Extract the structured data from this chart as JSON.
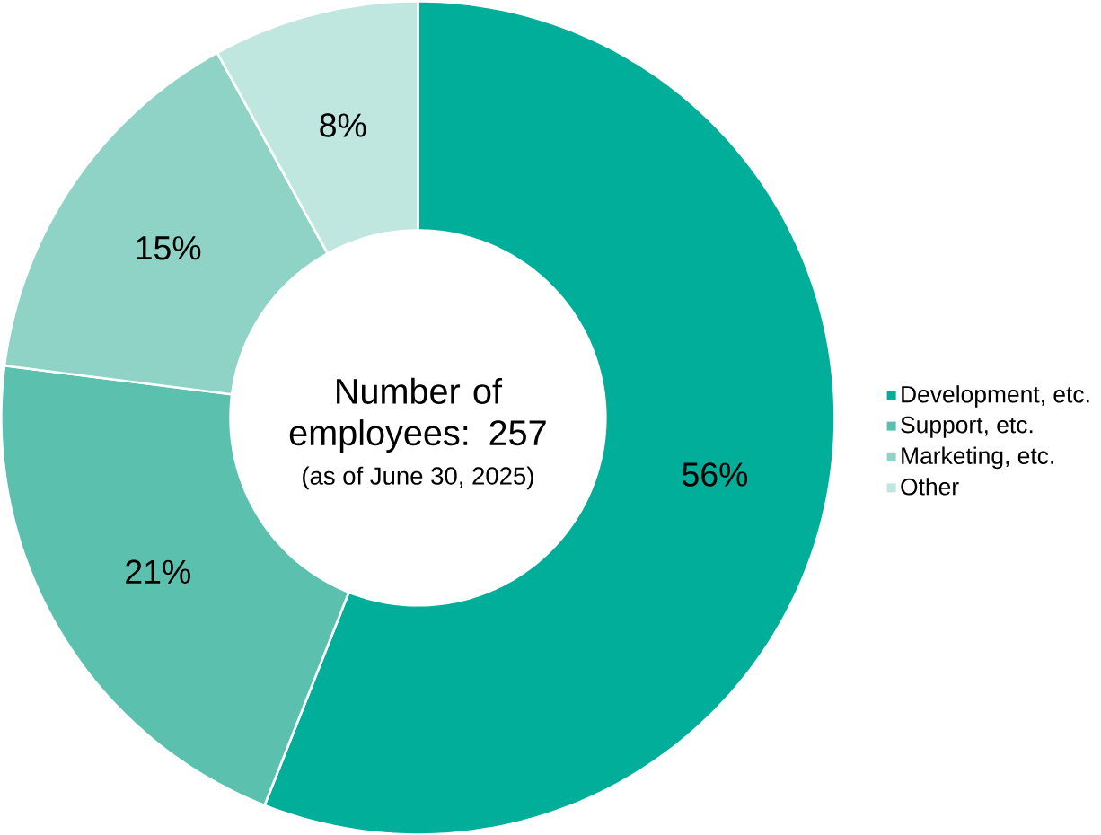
{
  "chart_data": {
    "type": "donut",
    "categories": [
      "Development, etc.",
      "Support, etc.",
      "Marketing, etc.",
      "Other"
    ],
    "values": [
      56,
      21,
      15,
      8
    ],
    "colors": [
      "#00ae9a",
      "#5cc0af",
      "#8fd3c7",
      "#bfe6df"
    ],
    "value_labels": [
      "56%",
      "21%",
      "15%",
      "8%"
    ],
    "annotations": [
      "Number of employees: 257",
      "(as of June 30, 2025)"
    ],
    "legend": "right"
  }
}
